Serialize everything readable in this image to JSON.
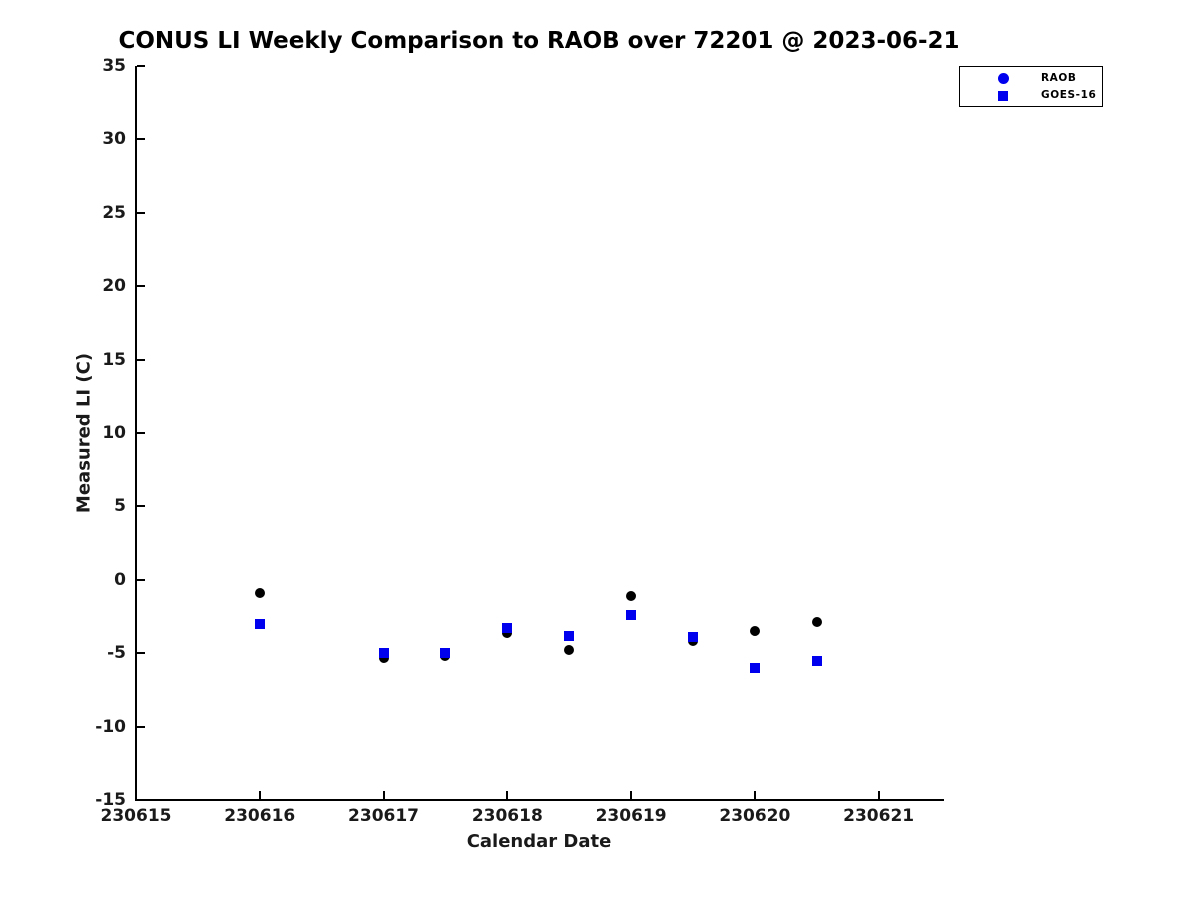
{
  "chart_data": {
    "type": "scatter",
    "title": "CONUS LI Weekly Comparison to RAOB over 72201 @ 2023-06-21",
    "xlabel": "Calendar Date",
    "ylabel": "Measured LI (C)",
    "xlim": [
      230615,
      230621.52
    ],
    "ylim": [
      -15,
      35
    ],
    "x_ticks": [
      230615,
      230616,
      230617,
      230618,
      230619,
      230620,
      230621
    ],
    "x_tick_labels": [
      "230615",
      "230616",
      "230617",
      "230618",
      "230619",
      "230620",
      "230621"
    ],
    "y_ticks": [
      35,
      30,
      25,
      20,
      15,
      10,
      5,
      0,
      -5,
      -10,
      -15
    ],
    "y_tick_labels": [
      "35",
      "30",
      "25",
      "20",
      "15",
      "10",
      "5",
      "0",
      "-5",
      "-10",
      "-15"
    ],
    "grid": false,
    "legend_position": "top-right",
    "tick_direction": "in",
    "x": [
      230616,
      230617,
      230617.5,
      230618,
      230618.5,
      230619,
      230619.5,
      230620,
      230620.5
    ],
    "series": [
      {
        "name": "RAOB",
        "marker": "circle",
        "plot_marker_color": "#000000",
        "legend_marker_color": "#0000ee",
        "values": [
          -0.9,
          -5.3,
          -5.2,
          -3.6,
          -4.8,
          -1.1,
          -4.2,
          -3.5,
          -2.9
        ]
      },
      {
        "name": "GOES-16",
        "marker": "square",
        "plot_marker_color": "#0000ee",
        "legend_marker_color": "#0000ee",
        "values": [
          -3.0,
          -5.0,
          -5.0,
          -3.3,
          -3.8,
          -2.4,
          -3.9,
          -6.0,
          -5.5
        ]
      }
    ]
  },
  "colors": {
    "axis": "#000000",
    "tick_text": "#1a1a1a",
    "raob_marker": "#000000",
    "goes16_marker": "#0000ee",
    "background": "#ffffff"
  }
}
